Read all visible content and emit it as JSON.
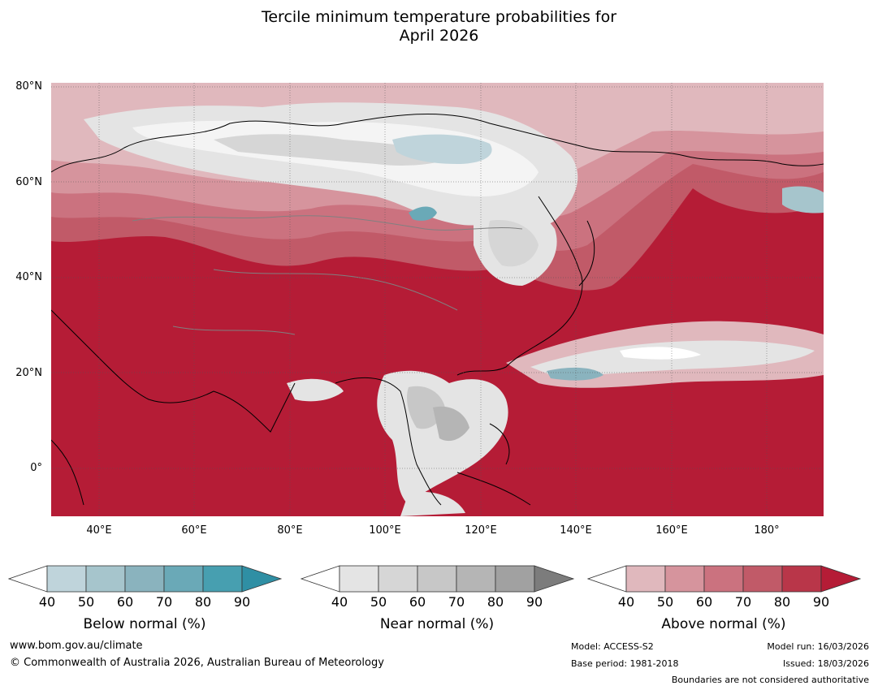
{
  "title_line1": "Tercile minimum temperature probabilities for",
  "title_line2": "April 2026",
  "map": {
    "lat_labels": [
      "80°N",
      "60°N",
      "40°N",
      "20°N",
      "0°"
    ],
    "lon_labels": [
      "40°E",
      "60°E",
      "80°E",
      "100°E",
      "120°E",
      "140°E",
      "160°E",
      "180°"
    ],
    "extent": {
      "lon_min": 30,
      "lon_max": 192,
      "lat_min": -10,
      "lat_max": 81
    }
  },
  "colorbars": [
    {
      "label": "Below normal (%)",
      "ticks": [
        "40",
        "50",
        "60",
        "70",
        "80",
        "90"
      ],
      "colors": [
        "#ffffff",
        "#bfd4db",
        "#a6c5cc",
        "#8ab3be",
        "#6aa9b7",
        "#479fb0",
        "#2f8fa4"
      ]
    },
    {
      "label": "Near normal (%)",
      "ticks": [
        "40",
        "50",
        "60",
        "70",
        "80",
        "90"
      ],
      "colors": [
        "#ffffff",
        "#e4e4e4",
        "#d6d6d6",
        "#c7c7c7",
        "#b5b5b5",
        "#a1a1a1",
        "#7c7c7c"
      ]
    },
    {
      "label": "Above normal (%)",
      "ticks": [
        "40",
        "50",
        "60",
        "70",
        "80",
        "90"
      ],
      "colors": [
        "#ffffff",
        "#e0b8bd",
        "#d6949d",
        "#cb727f",
        "#c15a68",
        "#b93649",
        "#b51c36"
      ]
    }
  ],
  "footer": {
    "website": "www.bom.gov.au/climate",
    "copyright": "© Commonwealth of Australia 2026, Australian Bureau of Meteorology",
    "model": "Model: ACCESS-S2",
    "base_period": "Base period: 1981-2018",
    "model_run": "Model run: 16/03/2026",
    "issued": "Issued: 18/03/2026",
    "disclaimer": "Boundaries are not considered authoritative"
  }
}
